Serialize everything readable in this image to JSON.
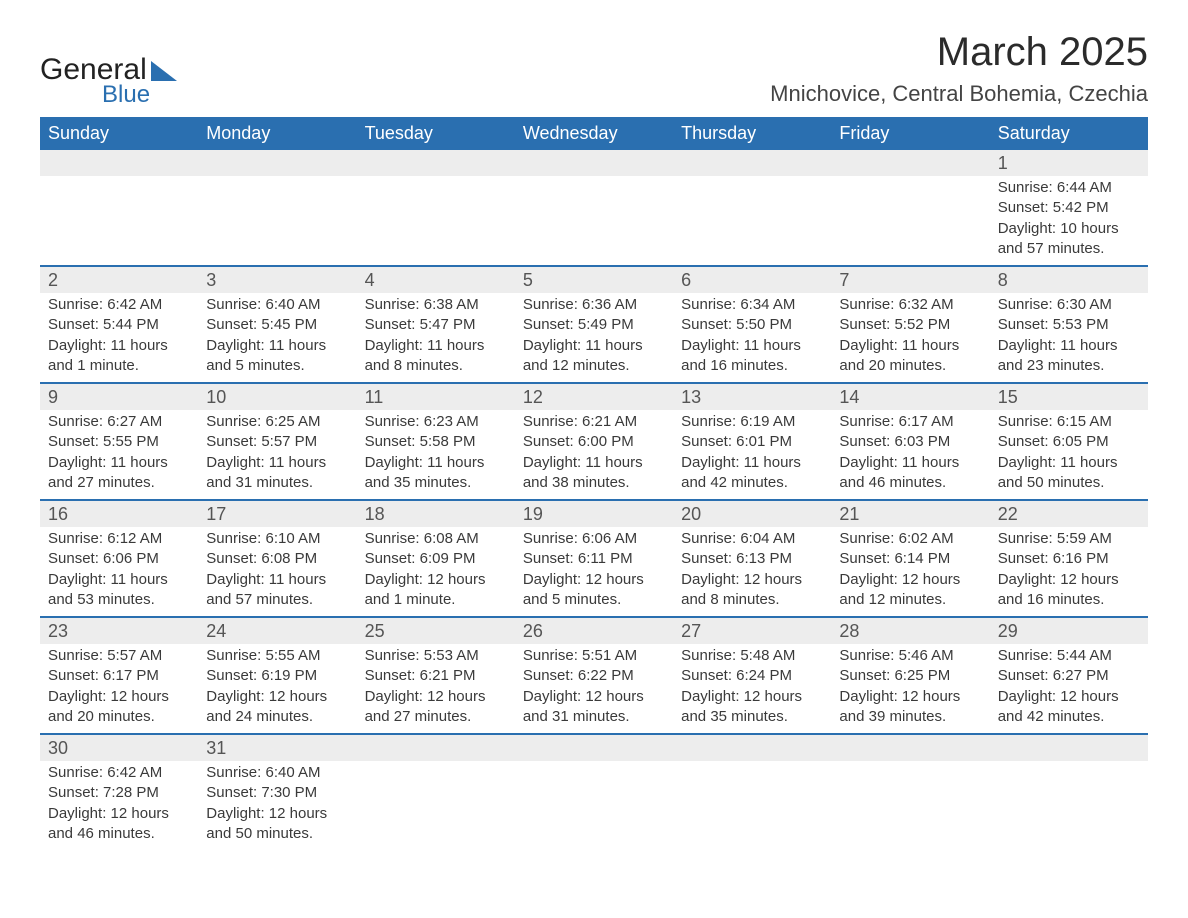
{
  "logo": {
    "text_general": "General",
    "text_blue": "Blue"
  },
  "header": {
    "title": "March 2025",
    "location": "Mnichovice, Central Bohemia, Czechia"
  },
  "colors": {
    "header_bg": "#2a6fb0",
    "header_text": "#ffffff",
    "daynum_bg": "#ededed",
    "row_divider": "#2a6fb0",
    "body_text": "#3a3a3a",
    "page_bg": "#ffffff"
  },
  "typography": {
    "title_fontsize_pt": 30,
    "location_fontsize_pt": 17,
    "dayheader_fontsize_pt": 14,
    "cell_fontsize_pt": 11
  },
  "day_headers": [
    "Sunday",
    "Monday",
    "Tuesday",
    "Wednesday",
    "Thursday",
    "Friday",
    "Saturday"
  ],
  "weeks": [
    [
      null,
      null,
      null,
      null,
      null,
      null,
      {
        "num": "1",
        "sunrise": "Sunrise: 6:44 AM",
        "sunset": "Sunset: 5:42 PM",
        "daylight1": "Daylight: 10 hours",
        "daylight2": "and 57 minutes."
      }
    ],
    [
      {
        "num": "2",
        "sunrise": "Sunrise: 6:42 AM",
        "sunset": "Sunset: 5:44 PM",
        "daylight1": "Daylight: 11 hours",
        "daylight2": "and 1 minute."
      },
      {
        "num": "3",
        "sunrise": "Sunrise: 6:40 AM",
        "sunset": "Sunset: 5:45 PM",
        "daylight1": "Daylight: 11 hours",
        "daylight2": "and 5 minutes."
      },
      {
        "num": "4",
        "sunrise": "Sunrise: 6:38 AM",
        "sunset": "Sunset: 5:47 PM",
        "daylight1": "Daylight: 11 hours",
        "daylight2": "and 8 minutes."
      },
      {
        "num": "5",
        "sunrise": "Sunrise: 6:36 AM",
        "sunset": "Sunset: 5:49 PM",
        "daylight1": "Daylight: 11 hours",
        "daylight2": "and 12 minutes."
      },
      {
        "num": "6",
        "sunrise": "Sunrise: 6:34 AM",
        "sunset": "Sunset: 5:50 PM",
        "daylight1": "Daylight: 11 hours",
        "daylight2": "and 16 minutes."
      },
      {
        "num": "7",
        "sunrise": "Sunrise: 6:32 AM",
        "sunset": "Sunset: 5:52 PM",
        "daylight1": "Daylight: 11 hours",
        "daylight2": "and 20 minutes."
      },
      {
        "num": "8",
        "sunrise": "Sunrise: 6:30 AM",
        "sunset": "Sunset: 5:53 PM",
        "daylight1": "Daylight: 11 hours",
        "daylight2": "and 23 minutes."
      }
    ],
    [
      {
        "num": "9",
        "sunrise": "Sunrise: 6:27 AM",
        "sunset": "Sunset: 5:55 PM",
        "daylight1": "Daylight: 11 hours",
        "daylight2": "and 27 minutes."
      },
      {
        "num": "10",
        "sunrise": "Sunrise: 6:25 AM",
        "sunset": "Sunset: 5:57 PM",
        "daylight1": "Daylight: 11 hours",
        "daylight2": "and 31 minutes."
      },
      {
        "num": "11",
        "sunrise": "Sunrise: 6:23 AM",
        "sunset": "Sunset: 5:58 PM",
        "daylight1": "Daylight: 11 hours",
        "daylight2": "and 35 minutes."
      },
      {
        "num": "12",
        "sunrise": "Sunrise: 6:21 AM",
        "sunset": "Sunset: 6:00 PM",
        "daylight1": "Daylight: 11 hours",
        "daylight2": "and 38 minutes."
      },
      {
        "num": "13",
        "sunrise": "Sunrise: 6:19 AM",
        "sunset": "Sunset: 6:01 PM",
        "daylight1": "Daylight: 11 hours",
        "daylight2": "and 42 minutes."
      },
      {
        "num": "14",
        "sunrise": "Sunrise: 6:17 AM",
        "sunset": "Sunset: 6:03 PM",
        "daylight1": "Daylight: 11 hours",
        "daylight2": "and 46 minutes."
      },
      {
        "num": "15",
        "sunrise": "Sunrise: 6:15 AM",
        "sunset": "Sunset: 6:05 PM",
        "daylight1": "Daylight: 11 hours",
        "daylight2": "and 50 minutes."
      }
    ],
    [
      {
        "num": "16",
        "sunrise": "Sunrise: 6:12 AM",
        "sunset": "Sunset: 6:06 PM",
        "daylight1": "Daylight: 11 hours",
        "daylight2": "and 53 minutes."
      },
      {
        "num": "17",
        "sunrise": "Sunrise: 6:10 AM",
        "sunset": "Sunset: 6:08 PM",
        "daylight1": "Daylight: 11 hours",
        "daylight2": "and 57 minutes."
      },
      {
        "num": "18",
        "sunrise": "Sunrise: 6:08 AM",
        "sunset": "Sunset: 6:09 PM",
        "daylight1": "Daylight: 12 hours",
        "daylight2": "and 1 minute."
      },
      {
        "num": "19",
        "sunrise": "Sunrise: 6:06 AM",
        "sunset": "Sunset: 6:11 PM",
        "daylight1": "Daylight: 12 hours",
        "daylight2": "and 5 minutes."
      },
      {
        "num": "20",
        "sunrise": "Sunrise: 6:04 AM",
        "sunset": "Sunset: 6:13 PM",
        "daylight1": "Daylight: 12 hours",
        "daylight2": "and 8 minutes."
      },
      {
        "num": "21",
        "sunrise": "Sunrise: 6:02 AM",
        "sunset": "Sunset: 6:14 PM",
        "daylight1": "Daylight: 12 hours",
        "daylight2": "and 12 minutes."
      },
      {
        "num": "22",
        "sunrise": "Sunrise: 5:59 AM",
        "sunset": "Sunset: 6:16 PM",
        "daylight1": "Daylight: 12 hours",
        "daylight2": "and 16 minutes."
      }
    ],
    [
      {
        "num": "23",
        "sunrise": "Sunrise: 5:57 AM",
        "sunset": "Sunset: 6:17 PM",
        "daylight1": "Daylight: 12 hours",
        "daylight2": "and 20 minutes."
      },
      {
        "num": "24",
        "sunrise": "Sunrise: 5:55 AM",
        "sunset": "Sunset: 6:19 PM",
        "daylight1": "Daylight: 12 hours",
        "daylight2": "and 24 minutes."
      },
      {
        "num": "25",
        "sunrise": "Sunrise: 5:53 AM",
        "sunset": "Sunset: 6:21 PM",
        "daylight1": "Daylight: 12 hours",
        "daylight2": "and 27 minutes."
      },
      {
        "num": "26",
        "sunrise": "Sunrise: 5:51 AM",
        "sunset": "Sunset: 6:22 PM",
        "daylight1": "Daylight: 12 hours",
        "daylight2": "and 31 minutes."
      },
      {
        "num": "27",
        "sunrise": "Sunrise: 5:48 AM",
        "sunset": "Sunset: 6:24 PM",
        "daylight1": "Daylight: 12 hours",
        "daylight2": "and 35 minutes."
      },
      {
        "num": "28",
        "sunrise": "Sunrise: 5:46 AM",
        "sunset": "Sunset: 6:25 PM",
        "daylight1": "Daylight: 12 hours",
        "daylight2": "and 39 minutes."
      },
      {
        "num": "29",
        "sunrise": "Sunrise: 5:44 AM",
        "sunset": "Sunset: 6:27 PM",
        "daylight1": "Daylight: 12 hours",
        "daylight2": "and 42 minutes."
      }
    ],
    [
      {
        "num": "30",
        "sunrise": "Sunrise: 6:42 AM",
        "sunset": "Sunset: 7:28 PM",
        "daylight1": "Daylight: 12 hours",
        "daylight2": "and 46 minutes."
      },
      {
        "num": "31",
        "sunrise": "Sunrise: 6:40 AM",
        "sunset": "Sunset: 7:30 PM",
        "daylight1": "Daylight: 12 hours",
        "daylight2": "and 50 minutes."
      },
      null,
      null,
      null,
      null,
      null
    ]
  ]
}
